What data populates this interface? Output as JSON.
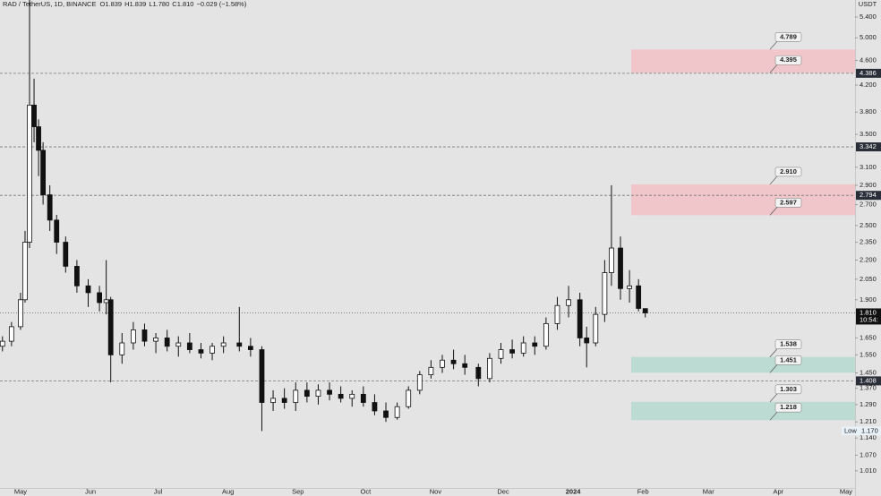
{
  "chart_data": {
    "type": "candlestick",
    "header": {
      "symbol": "RAD / TetherUS, 1D, BINANCE",
      "ohlc": [
        {
          "key": "O",
          "value": 1.839,
          "label": "1.839"
        },
        {
          "key": "H",
          "value": 1.839,
          "label": "1.839"
        },
        {
          "key": "L",
          "value": 1.78,
          "label": "1.780"
        },
        {
          "key": "C",
          "value": 1.81,
          "label": "1.810"
        }
      ],
      "change": "−0.029 (−1.58%)"
    },
    "currency": "USDT",
    "log_scale": true,
    "grid": false,
    "x": [
      -8,
      -4,
      0,
      2,
      4,
      6,
      8,
      10,
      13,
      16,
      20,
      25,
      30,
      35,
      38,
      40,
      45,
      50,
      55,
      60,
      65,
      70,
      75,
      80,
      85,
      90,
      97,
      102,
      107,
      112,
      117,
      122,
      127,
      132,
      137,
      142,
      147,
      152,
      157,
      162,
      167,
      172,
      177,
      182,
      187,
      192,
      197,
      203,
      208,
      213,
      218,
      223,
      228,
      233,
      238,
      243,
      248,
      251,
      255,
      259,
      262,
      266,
      270,
      274,
      277
    ],
    "open": [
      1.6,
      1.63,
      1.72,
      1.9,
      2.35,
      3.9,
      3.6,
      3.3,
      2.8,
      2.55,
      2.35,
      2.15,
      2.0,
      1.95,
      1.88,
      1.9,
      1.55,
      1.62,
      1.7,
      1.63,
      1.65,
      1.6,
      1.62,
      1.58,
      1.56,
      1.6,
      1.62,
      1.6,
      1.58,
      1.3,
      1.32,
      1.3,
      1.36,
      1.33,
      1.36,
      1.34,
      1.32,
      1.34,
      1.3,
      1.26,
      1.23,
      1.28,
      1.36,
      1.44,
      1.48,
      1.52,
      1.5,
      1.48,
      1.42,
      1.53,
      1.58,
      1.56,
      1.62,
      1.6,
      1.74,
      1.86,
      1.9,
      1.65,
      1.62,
      1.8,
      2.1,
      2.3,
      1.98,
      2.0,
      1.839
    ],
    "high": [
      1.66,
      1.75,
      1.95,
      2.45,
      6.2,
      4.3,
      3.7,
      3.4,
      2.9,
      2.6,
      2.4,
      2.2,
      2.05,
      2.0,
      2.2,
      1.92,
      1.68,
      1.75,
      1.74,
      1.68,
      1.7,
      1.66,
      1.68,
      1.62,
      1.62,
      1.66,
      1.85,
      1.65,
      1.6,
      1.36,
      1.37,
      1.4,
      1.4,
      1.39,
      1.4,
      1.38,
      1.36,
      1.38,
      1.34,
      1.3,
      1.3,
      1.38,
      1.46,
      1.52,
      1.55,
      1.58,
      1.55,
      1.5,
      1.56,
      1.62,
      1.64,
      1.66,
      1.66,
      1.78,
      1.92,
      2.0,
      1.95,
      1.72,
      1.85,
      2.2,
      2.9,
      2.4,
      2.12,
      2.05,
      1.839
    ],
    "low": [
      1.57,
      1.6,
      1.7,
      1.88,
      2.3,
      3.4,
      3.0,
      2.7,
      2.45,
      2.25,
      2.1,
      1.95,
      1.85,
      1.82,
      1.8,
      1.4,
      1.5,
      1.58,
      1.6,
      1.56,
      1.57,
      1.54,
      1.56,
      1.53,
      1.52,
      1.56,
      1.57,
      1.54,
      1.17,
      1.26,
      1.27,
      1.26,
      1.3,
      1.29,
      1.31,
      1.3,
      1.28,
      1.28,
      1.24,
      1.21,
      1.22,
      1.27,
      1.34,
      1.42,
      1.45,
      1.47,
      1.44,
      1.38,
      1.4,
      1.5,
      1.53,
      1.54,
      1.55,
      1.58,
      1.7,
      1.78,
      1.6,
      1.48,
      1.6,
      1.75,
      2.0,
      1.9,
      1.88,
      1.82,
      1.78
    ],
    "close": [
      1.63,
      1.72,
      1.9,
      2.35,
      3.9,
      3.6,
      3.3,
      2.8,
      2.55,
      2.35,
      2.15,
      2.0,
      1.95,
      1.88,
      1.9,
      1.55,
      1.62,
      1.7,
      1.63,
      1.65,
      1.6,
      1.62,
      1.58,
      1.56,
      1.6,
      1.62,
      1.6,
      1.58,
      1.3,
      1.32,
      1.3,
      1.36,
      1.33,
      1.36,
      1.34,
      1.32,
      1.34,
      1.3,
      1.26,
      1.23,
      1.28,
      1.36,
      1.44,
      1.48,
      1.52,
      1.5,
      1.48,
      1.42,
      1.53,
      1.58,
      1.56,
      1.62,
      1.6,
      1.74,
      1.86,
      1.9,
      1.65,
      1.62,
      1.8,
      2.1,
      2.3,
      1.98,
      2.0,
      1.84,
      1.81
    ],
    "xlim": [
      -9.1,
      370
    ],
    "xticks": [
      {
        "value": 0,
        "label": "May"
      },
      {
        "value": 31,
        "label": "Jun"
      },
      {
        "value": 61,
        "label": "Jul"
      },
      {
        "value": 92,
        "label": "Aug"
      },
      {
        "value": 123,
        "label": "Sep"
      },
      {
        "value": 153,
        "label": "Oct"
      },
      {
        "value": 184,
        "label": "Nov"
      },
      {
        "value": 214,
        "label": "Dec"
      },
      {
        "value": 245,
        "label": "2024"
      },
      {
        "value": 276,
        "label": "Feb"
      },
      {
        "value": 305,
        "label": "Mar"
      },
      {
        "value": 336,
        "label": "Apr"
      },
      {
        "value": 366,
        "label": "May"
      }
    ],
    "ylim": [
      0.948,
      5.75
    ],
    "yticks": [
      {
        "value": 5.4,
        "label": "5.400"
      },
      {
        "value": 5,
        "label": "5.000"
      },
      {
        "value": 4.6,
        "label": "4.600"
      },
      {
        "value": 4.2,
        "label": "4.200"
      },
      {
        "value": 3.8,
        "label": "3.800"
      },
      {
        "value": 3.5,
        "label": "3.500"
      },
      {
        "value": 3.1,
        "label": "3.100"
      },
      {
        "value": 2.9,
        "label": "2.900"
      },
      {
        "value": 2.7,
        "label": "2.700"
      },
      {
        "value": 2.5,
        "label": "2.500"
      },
      {
        "value": 2.35,
        "label": "2.350"
      },
      {
        "value": 2.2,
        "label": "2.200"
      },
      {
        "value": 2.05,
        "label": "2.050"
      },
      {
        "value": 1.9,
        "label": "1.900"
      },
      {
        "value": 1.65,
        "label": "1.650"
      },
      {
        "value": 1.55,
        "label": "1.550"
      },
      {
        "value": 1.45,
        "label": "1.450"
      },
      {
        "value": 1.37,
        "label": "1.370"
      },
      {
        "value": 1.29,
        "label": "1.290"
      },
      {
        "value": 1.21,
        "label": "1.210"
      },
      {
        "value": 1.14,
        "label": "1.140"
      },
      {
        "value": 1.07,
        "label": "1.070"
      },
      {
        "value": 1.01,
        "label": "1.010"
      }
    ],
    "price_lines": [
      {
        "value": 4.386,
        "label": "4.386"
      },
      {
        "value": 3.342,
        "label": "3.342"
      },
      {
        "value": 2.794,
        "label": "2.794"
      },
      {
        "value": 1.408,
        "label": "1.408"
      }
    ],
    "last_price": {
      "value": 1.81,
      "label": "1.810",
      "countdown": "10:54:"
    },
    "low_marker": {
      "text": "Low",
      "value": 1.17,
      "label": "1.170"
    },
    "zones": [
      {
        "color": "#f1c6ca",
        "top": {
          "value": 4.789,
          "label": "4.789"
        },
        "bottom": {
          "value": 4.395,
          "label": "4.395"
        }
      },
      {
        "color": "#f1c6ca",
        "top": {
          "value": 2.91,
          "label": "2.910"
        },
        "bottom": {
          "value": 2.597,
          "label": "2.597"
        }
      },
      {
        "color": "#bcdbd2",
        "top": {
          "value": 1.538,
          "label": "1.538"
        },
        "bottom": {
          "value": 1.451,
          "label": "1.451"
        }
      },
      {
        "color": "#bcdbd2",
        "top": {
          "value": 1.303,
          "label": "1.303"
        },
        "bottom": {
          "value": 1.218,
          "label": "1.218"
        }
      }
    ]
  }
}
